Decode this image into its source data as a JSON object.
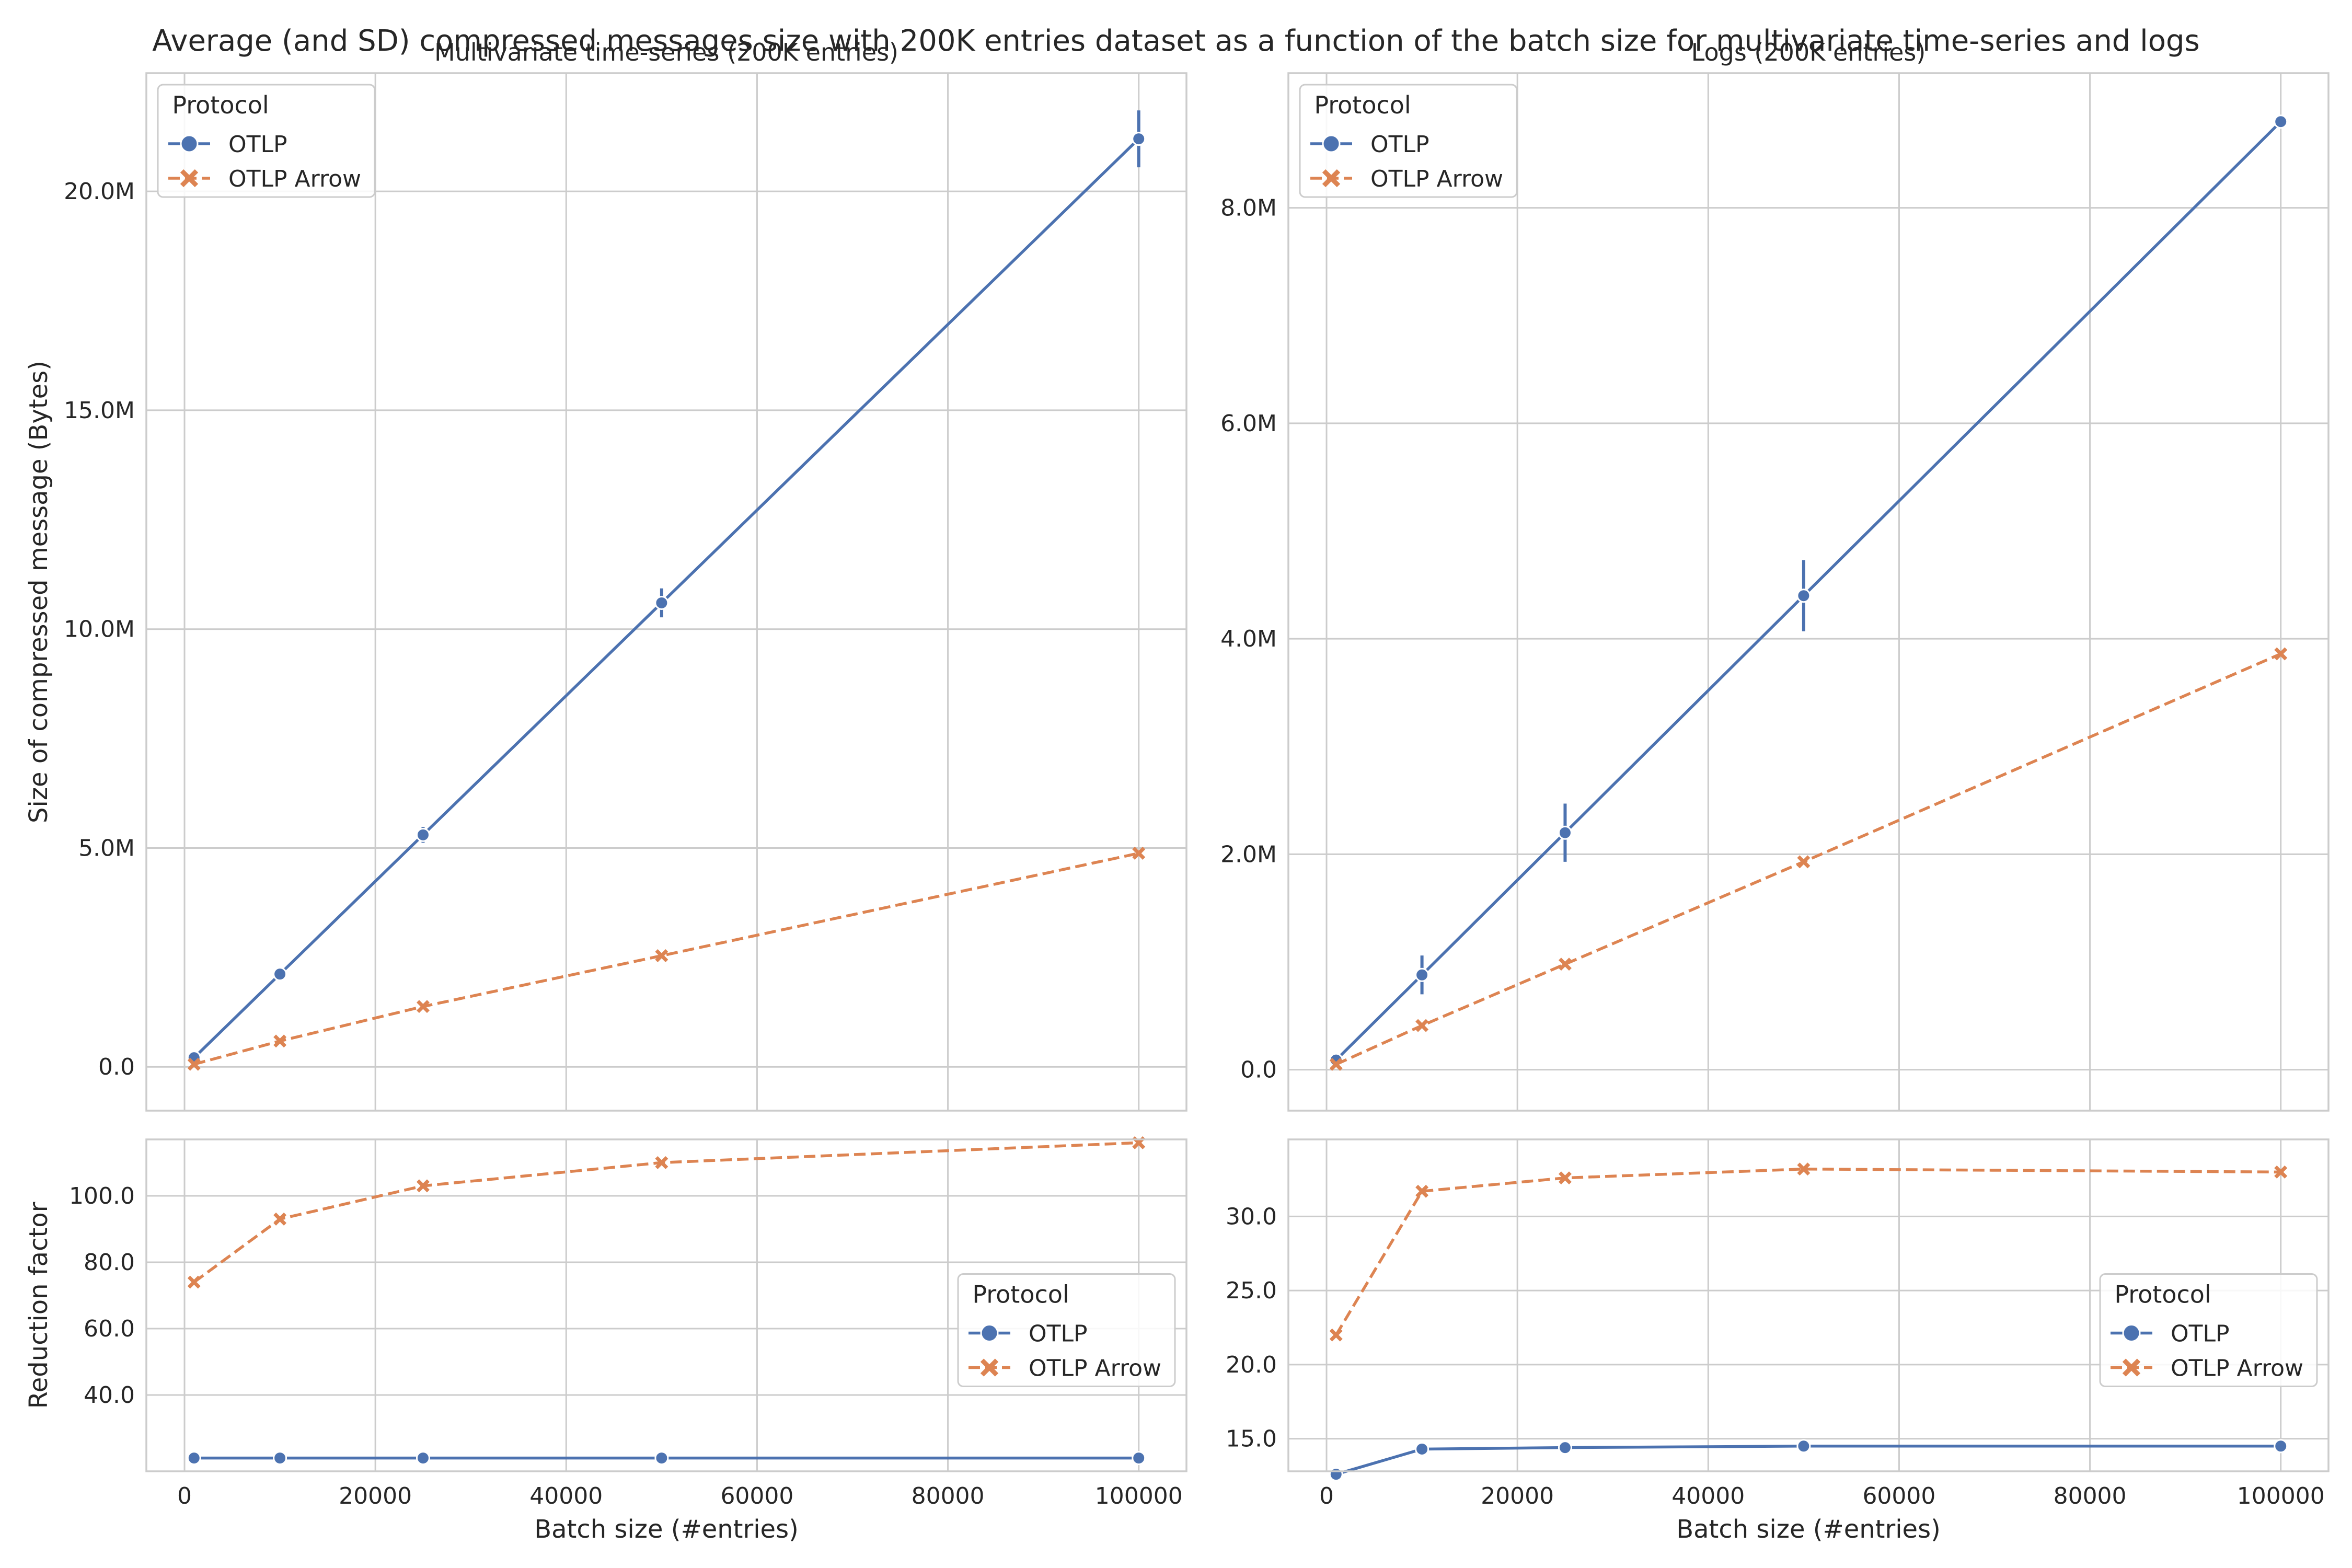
{
  "figure": {
    "suptitle": "Average (and SD) compressed messages size with 200K entries dataset as a function of the batch size for multivariate time-series and logs"
  },
  "colors": {
    "otlp": "#4c72b0",
    "otlp_arrow": "#dd8452",
    "grid": "#cccccc",
    "spine": "#cccccc",
    "text": "#262626"
  },
  "chart_data": [
    {
      "id": "ts-size",
      "type": "line",
      "title": "Multivariate time-series (200K entries)",
      "xlabel": "",
      "ylabel": "Size of compressed message (Bytes)",
      "xlim": [
        -4000,
        105000
      ],
      "ylim": [
        -1000000,
        22700000
      ],
      "xticks": [
        0,
        20000,
        40000,
        60000,
        80000,
        100000
      ],
      "yticks": [
        0,
        5000000,
        10000000,
        15000000,
        20000000
      ],
      "ytick_labels": [
        "0.0",
        "5.0M",
        "10.0M",
        "15.0M",
        "20.0M"
      ],
      "show_xtick_labels": false,
      "grid": true,
      "legend": {
        "title": "Protocol",
        "placement": "top-left",
        "labels": [
          "OTLP",
          "OTLP Arrow"
        ]
      },
      "series": [
        {
          "name": "OTLP",
          "marker": "circle",
          "dash": "solid",
          "x": [
            1000,
            10000,
            25000,
            50000,
            100000
          ],
          "y": [
            210000,
            2120000,
            5300000,
            10600000,
            21200000
          ],
          "sd": [
            0,
            60000,
            180000,
            330000,
            650000
          ]
        },
        {
          "name": "OTLP Arrow",
          "marker": "x",
          "dash": "dashed",
          "x": [
            1000,
            10000,
            25000,
            50000,
            100000
          ],
          "y": [
            60000,
            590000,
            1380000,
            2540000,
            4880000
          ],
          "sd": [
            0,
            0,
            0,
            0,
            0
          ]
        }
      ]
    },
    {
      "id": "logs-size",
      "type": "line",
      "title": "Logs (200K entries)",
      "xlabel": "",
      "ylabel": "",
      "xlim": [
        -4000,
        105000
      ],
      "ylim": [
        -380000,
        9250000
      ],
      "xticks": [
        0,
        20000,
        40000,
        60000,
        80000,
        100000
      ],
      "yticks": [
        0,
        2000000,
        4000000,
        6000000,
        8000000
      ],
      "ytick_labels": [
        "0.0",
        "2.0M",
        "4.0M",
        "6.0M",
        "8.0M"
      ],
      "show_xtick_labels": false,
      "grid": true,
      "legend": {
        "title": "Protocol",
        "placement": "top-left",
        "labels": [
          "OTLP",
          "OTLP Arrow"
        ]
      },
      "series": [
        {
          "name": "OTLP",
          "marker": "circle",
          "dash": "solid",
          "x": [
            1000,
            10000,
            25000,
            50000,
            100000
          ],
          "y": [
            90000,
            880000,
            2200000,
            4400000,
            8800000
          ],
          "sd": [
            0,
            180000,
            270000,
            330000,
            0
          ]
        },
        {
          "name": "OTLP Arrow",
          "marker": "x",
          "dash": "dashed",
          "x": [
            1000,
            10000,
            25000,
            50000,
            100000
          ],
          "y": [
            50000,
            410000,
            980000,
            1930000,
            3860000
          ],
          "sd": [
            0,
            0,
            0,
            0,
            0
          ]
        }
      ]
    },
    {
      "id": "ts-reduction",
      "type": "line",
      "title": "",
      "xlabel": "Batch size (#entries)",
      "ylabel": "Reduction factor",
      "xlim": [
        -4000,
        105000
      ],
      "ylim": [
        17,
        117
      ],
      "xticks": [
        0,
        20000,
        40000,
        60000,
        80000,
        100000
      ],
      "xtick_labels": [
        "0",
        "20000",
        "40000",
        "60000",
        "80000",
        "100000"
      ],
      "yticks": [
        40,
        60,
        80,
        100
      ],
      "ytick_labels": [
        "40.0",
        "60.0",
        "80.0",
        "100.0"
      ],
      "show_xtick_labels": true,
      "grid": true,
      "legend": {
        "title": "Protocol",
        "placement": "center-right",
        "labels": [
          "OTLP",
          "OTLP Arrow"
        ]
      },
      "series": [
        {
          "name": "OTLP",
          "marker": "circle",
          "dash": "solid",
          "x": [
            1000,
            10000,
            25000,
            50000,
            100000
          ],
          "y": [
            21,
            21,
            21,
            21,
            21
          ],
          "sd": [
            0,
            0,
            0,
            0,
            0
          ]
        },
        {
          "name": "OTLP Arrow",
          "marker": "x",
          "dash": "dashed",
          "x": [
            1000,
            10000,
            25000,
            50000,
            100000
          ],
          "y": [
            74,
            93,
            103,
            110,
            116
          ],
          "sd": [
            0,
            0,
            0,
            0,
            0
          ]
        }
      ]
    },
    {
      "id": "logs-reduction",
      "type": "line",
      "title": "",
      "xlabel": "Batch size (#entries)",
      "ylabel": "",
      "xlim": [
        -4000,
        105000
      ],
      "ylim": [
        12.8,
        35.2
      ],
      "xticks": [
        0,
        20000,
        40000,
        60000,
        80000,
        100000
      ],
      "xtick_labels": [
        "0",
        "20000",
        "40000",
        "60000",
        "80000",
        "100000"
      ],
      "yticks": [
        15,
        20,
        25,
        30
      ],
      "ytick_labels": [
        "15.0",
        "20.0",
        "25.0",
        "30.0"
      ],
      "show_xtick_labels": true,
      "grid": true,
      "legend": {
        "title": "Protocol",
        "placement": "center-right",
        "labels": [
          "OTLP",
          "OTLP Arrow"
        ]
      },
      "series": [
        {
          "name": "OTLP",
          "marker": "circle",
          "dash": "solid",
          "x": [
            1000,
            10000,
            25000,
            50000,
            100000
          ],
          "y": [
            12.6,
            14.3,
            14.4,
            14.5,
            14.5
          ],
          "sd": [
            0,
            0,
            0,
            0,
            0
          ]
        },
        {
          "name": "OTLP Arrow",
          "marker": "x",
          "dash": "dashed",
          "x": [
            1000,
            10000,
            25000,
            50000,
            100000
          ],
          "y": [
            22.0,
            31.7,
            32.6,
            33.2,
            33.0
          ],
          "sd": [
            0,
            0,
            0,
            0,
            0
          ]
        }
      ]
    }
  ]
}
